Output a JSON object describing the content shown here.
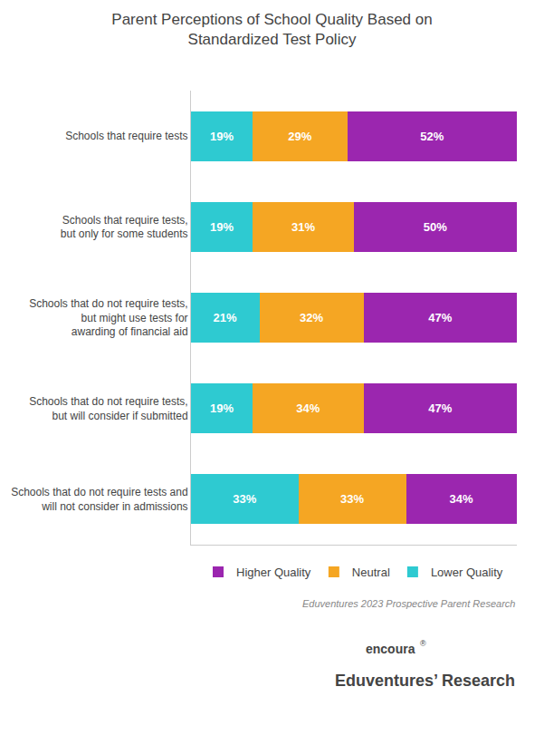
{
  "chart_data": {
    "type": "bar",
    "orientation": "horizontal",
    "stacked": true,
    "title": "Parent Perceptions of School Quality Based on\nStandardized Test Policy",
    "categories": [
      "Schools that require tests",
      "Schools that require tests,\nbut only for some students",
      "Schools that do not require tests,\nbut might use tests for\nawarding of financial aid",
      "Schools that do not require tests,\nbut will consider if submitted",
      "Schools that do not require tests and\nwill not consider in admissions"
    ],
    "series": [
      {
        "name": "Lower Quality",
        "color": "#2ecad1",
        "values": [
          19,
          19,
          21,
          19,
          33
        ],
        "value_labels": [
          "19%",
          "19%",
          "21%",
          "19%",
          "33%"
        ]
      },
      {
        "name": "Neutral",
        "color": "#f5a623",
        "values": [
          29,
          31,
          32,
          34,
          33
        ],
        "value_labels": [
          "29%",
          "31%",
          "32%",
          "34%",
          "33%"
        ]
      },
      {
        "name": "Higher Quality",
        "color": "#9b26af",
        "values": [
          52,
          50,
          47,
          47,
          34
        ],
        "value_labels": [
          "52%",
          "50%",
          "47%",
          "47%",
          "34%"
        ]
      }
    ],
    "xlim": [
      0,
      100
    ],
    "tick_labels": "y",
    "grid": false,
    "legend": "bottom",
    "data_labels": true,
    "annotations": [
      "Eduventures 2023 Prospective Parent Research",
      "encoura",
      "®",
      "Eduventures’ Research"
    ]
  }
}
